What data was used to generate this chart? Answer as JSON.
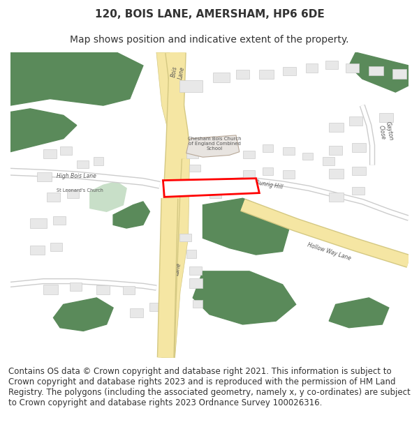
{
  "title": "120, BOIS LANE, AMERSHAM, HP6 6DE",
  "subtitle": "Map shows position and indicative extent of the property.",
  "copyright_text": "Contains OS data © Crown copyright and database right 2021. This information is subject to Crown copyright and database rights 2023 and is reproduced with the permission of HM Land Registry. The polygons (including the associated geometry, namely x, y co-ordinates) are subject to Crown copyright and database rights 2023 Ordnance Survey 100026316.",
  "bg_color": "#f8f8f8",
  "map_bg": "#ffffff",
  "road_color_major": "#f5e6a3",
  "road_color_minor": "#ffffff",
  "road_border": "#d4c882",
  "green_color": "#5a8a5a",
  "light_green": "#c8dfc8",
  "building_color": "#e8e8e8",
  "building_border": "#cccccc",
  "red_plot": "#ff0000",
  "text_color": "#333333",
  "title_fontsize": 11,
  "subtitle_fontsize": 10,
  "copyright_fontsize": 8.5
}
